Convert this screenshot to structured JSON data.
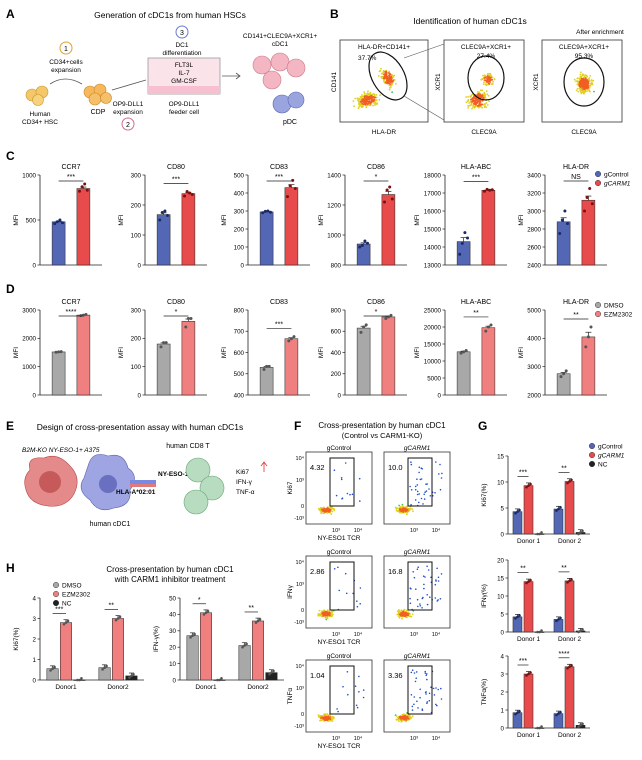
{
  "colors": {
    "blue": "#5467b5",
    "red": "#e84b4b",
    "grey": "#a8a8a8",
    "pink": "#f08080",
    "black": "#222222",
    "dot_blue": "#1a2a66",
    "dot_red": "#7a1111",
    "dot_grey": "#555555"
  },
  "panel_labels": [
    "A",
    "B",
    "C",
    "D",
    "E",
    "F",
    "G",
    "H"
  ],
  "panel_a": {
    "title": "Generation of cDC1s from human HSCs",
    "step1": "CD34+cells",
    "step1b": "expansion",
    "step2": "OP9-DLL1",
    "step2b": "expansion",
    "step3": "DC1",
    "step3b": "differentiation",
    "hsc": "Human",
    "hscb": "CD34+ HSC",
    "cdp": "CDP",
    "cytokine1": "FLT3L",
    "cytokine2": "IL-7",
    "cytokine3": "GM-CSF",
    "feeder": "OP9-DLL1",
    "feederb": "feeder cell",
    "output": "CD141+CLEC9A+XCR1+",
    "outputb": "cDC1",
    "pdc": "pDC",
    "num1": "1",
    "num2": "2",
    "num3": "3"
  },
  "panel_b": {
    "title": "Identification of human cDC1s",
    "after": "After enrichment",
    "gate1": "HLA-DR+CD141+",
    "pct1": "37.7%",
    "gate2": "CLEC9A+XCR1+",
    "pct2": "27.4%",
    "gate3": "CLEC9A+XCR1+",
    "pct3": "95.3%",
    "xlab1": "HLA-DR",
    "ylab1": "CD141",
    "xlab2": "CLEC9A",
    "ylab2": "XCR1",
    "xlab3": "CLEC9A",
    "ylab3": "XCR1"
  },
  "chart_data": [
    {
      "type": "bar",
      "panel": "C",
      "title": "CCR7",
      "ylabel": "MFI",
      "ylim": [
        0,
        1000
      ],
      "ticks": [
        0,
        500,
        1000
      ],
      "series": [
        {
          "name": "gControl",
          "values": [
            480
          ]
        },
        {
          "name": "gCARM1",
          "values": [
            850
          ]
        }
      ],
      "points": [
        [
          460,
          480,
          500,
          470
        ],
        [
          820,
          870,
          900,
          830
        ]
      ],
      "sig": "***"
    },
    {
      "type": "bar",
      "panel": "C",
      "title": "CD80",
      "ylabel": "MFI",
      "ylim": [
        0,
        300
      ],
      "ticks": [
        0,
        100,
        200,
        300
      ],
      "series": [
        {
          "name": "gControl",
          "values": [
            168
          ]
        },
        {
          "name": "gCARM1",
          "values": [
            238
          ]
        }
      ],
      "points": [
        [
          150,
          175,
          180,
          165
        ],
        [
          230,
          245,
          240,
          235
        ]
      ],
      "sig": "***"
    },
    {
      "type": "bar",
      "panel": "C",
      "title": "CD83",
      "ylabel": "MFI",
      "ylim": [
        0,
        500
      ],
      "ticks": [
        0,
        100,
        200,
        300,
        400,
        500
      ],
      "series": [
        {
          "name": "gControl",
          "values": [
            295
          ]
        },
        {
          "name": "gCARM1",
          "values": [
            430
          ]
        }
      ],
      "points": [
        [
          290,
          298,
          300,
          293
        ],
        [
          380,
          440,
          470,
          425
        ]
      ],
      "sig": "***"
    },
    {
      "type": "bar",
      "panel": "C",
      "title": "CD86",
      "ylabel": "MFI",
      "ylim": [
        800,
        1400
      ],
      "ticks": [
        800,
        1000,
        1200,
        1400
      ],
      "series": [
        {
          "name": "gControl",
          "values": [
            940
          ]
        },
        {
          "name": "gCARM1",
          "values": [
            1270
          ]
        }
      ],
      "points": [
        [
          920,
          930,
          960,
          945
        ],
        [
          1220,
          1300,
          1320,
          1240
        ]
      ],
      "sig": "*"
    },
    {
      "type": "bar",
      "panel": "C",
      "title": "HLA-ABC",
      "ylabel": "MFI",
      "ylim": [
        13000,
        18000
      ],
      "ticks": [
        13000,
        14000,
        15000,
        16000,
        17000,
        18000
      ],
      "series": [
        {
          "name": "gControl",
          "values": [
            14300
          ]
        },
        {
          "name": "gCARM1",
          "values": [
            17150
          ]
        }
      ],
      "points": [
        [
          13600,
          14200,
          14800,
          14500
        ],
        [
          17100,
          17200,
          17150,
          17180
        ]
      ],
      "sig": "***"
    },
    {
      "type": "bar",
      "panel": "C",
      "title": "HLA-DR",
      "ylabel": "MFI",
      "ylim": [
        2400,
        3400
      ],
      "ticks": [
        2400,
        2600,
        2800,
        3000,
        3200,
        3400
      ],
      "series": [
        {
          "name": "gControl",
          "values": [
            2880
          ]
        },
        {
          "name": "gCARM1",
          "values": [
            3120
          ]
        }
      ],
      "points": [
        [
          2750,
          2900,
          3000,
          2860
        ],
        [
          3000,
          3150,
          3250,
          3080
        ]
      ],
      "sig": "NS"
    },
    {
      "type": "bar",
      "panel": "D",
      "title": "CCR7",
      "ylabel": "MFI",
      "ylim": [
        0,
        3000
      ],
      "ticks": [
        0,
        1000,
        2000,
        3000
      ],
      "series": [
        {
          "name": "DMSO",
          "values": [
            1520
          ]
        },
        {
          "name": "EZM2302",
          "values": [
            2820
          ]
        }
      ],
      "points": [
        [
          1510,
          1520,
          1530
        ],
        [
          2800,
          2820,
          2840
        ]
      ],
      "sig": "****"
    },
    {
      "type": "bar",
      "panel": "D",
      "title": "CD80",
      "ylabel": "MFI",
      "ylim": [
        0,
        300
      ],
      "ticks": [
        0,
        100,
        200,
        300
      ],
      "series": [
        {
          "name": "DMSO",
          "values": [
            180
          ]
        },
        {
          "name": "EZM2302",
          "values": [
            260
          ]
        }
      ],
      "points": [
        [
          170,
          185,
          185
        ],
        [
          240,
          270,
          270
        ]
      ],
      "sig": "*"
    },
    {
      "type": "bar",
      "panel": "D",
      "title": "CD83",
      "ylabel": "MFI",
      "ylim": [
        400,
        800
      ],
      "ticks": [
        400,
        500,
        600,
        700,
        800
      ],
      "series": [
        {
          "name": "DMSO",
          "values": [
            530
          ]
        },
        {
          "name": "EZM2302",
          "values": [
            665
          ]
        }
      ],
      "points": [
        [
          520,
          535,
          535
        ],
        [
          655,
          665,
          675
        ]
      ],
      "sig": "***"
    },
    {
      "type": "bar",
      "panel": "D",
      "title": "CD86",
      "ylabel": "MFI",
      "ylim": [
        0,
        800
      ],
      "ticks": [
        0,
        200,
        400,
        600,
        800
      ],
      "series": [
        {
          "name": "DMSO",
          "values": [
            630
          ]
        },
        {
          "name": "EZM2302",
          "values": [
            735
          ]
        }
      ],
      "points": [
        [
          590,
          640,
          660
        ],
        [
          720,
          735,
          750
        ]
      ],
      "sig": "*"
    },
    {
      "type": "bar",
      "panel": "D",
      "title": "HLA-ABC",
      "ylabel": "MFI",
      "ylim": [
        0,
        25000
      ],
      "ticks": [
        0,
        5000,
        10000,
        15000,
        20000,
        25000
      ],
      "series": [
        {
          "name": "DMSO",
          "values": [
            12700
          ]
        },
        {
          "name": "EZM2302",
          "values": [
            19800
          ]
        }
      ],
      "points": [
        [
          12300,
          12700,
          13100
        ],
        [
          18800,
          20000,
          20600
        ]
      ],
      "sig": "**"
    },
    {
      "type": "bar",
      "panel": "D",
      "title": "HLA-DR",
      "ylabel": "MFI",
      "ylim": [
        2000,
        5000
      ],
      "ticks": [
        2000,
        3000,
        4000,
        5000
      ],
      "series": [
        {
          "name": "DMSO",
          "values": [
            2750
          ]
        },
        {
          "name": "EZM2302",
          "values": [
            4050
          ]
        }
      ],
      "points": [
        [
          2650,
          2750,
          2850
        ],
        [
          3700,
          4050,
          4400
        ]
      ],
      "sig": "**"
    },
    {
      "type": "bar",
      "panel": "G",
      "ylabel": "Ki67(%)",
      "ylim": [
        0,
        15
      ],
      "ticks": [
        0,
        5,
        10,
        15
      ],
      "categories": [
        "Donor 1",
        "Donor 2"
      ],
      "series": [
        {
          "name": "gControl",
          "values": [
            4.3,
            4.8
          ]
        },
        {
          "name": "gCARM1",
          "values": [
            9.3,
            10.1
          ]
        },
        {
          "name": "NC",
          "values": [
            0,
            0.3
          ]
        }
      ],
      "sigs": [
        "***",
        "**"
      ]
    },
    {
      "type": "bar",
      "panel": "G",
      "ylabel": "IFNγ(%)",
      "ylim": [
        0,
        20
      ],
      "ticks": [
        0,
        5,
        10,
        15,
        20
      ],
      "categories": [
        "Donor 1",
        "Donor 2"
      ],
      "series": [
        {
          "name": "gControl",
          "values": [
            4.2,
            3.5
          ]
        },
        {
          "name": "gCARM1",
          "values": [
            14.0,
            14.2
          ]
        },
        {
          "name": "NC",
          "values": [
            0,
            0.3
          ]
        }
      ],
      "sigs": [
        "**",
        "**"
      ]
    },
    {
      "type": "bar",
      "panel": "G",
      "ylabel": "TNFα(%)",
      "ylim": [
        0,
        4
      ],
      "ticks": [
        0,
        1,
        2,
        3,
        4
      ],
      "categories": [
        "Donor 1",
        "Donor 2"
      ],
      "series": [
        {
          "name": "gControl",
          "values": [
            0.85,
            0.8
          ]
        },
        {
          "name": "gCARM1",
          "values": [
            3.0,
            3.4
          ]
        },
        {
          "name": "NC",
          "values": [
            0,
            0.15
          ]
        }
      ],
      "sigs": [
        "***",
        "****"
      ]
    },
    {
      "type": "bar",
      "panel": "H",
      "ylabel": "Ki67(%)",
      "ylim": [
        0,
        4
      ],
      "ticks": [
        0,
        1,
        2,
        3,
        4
      ],
      "categories": [
        "Donor1",
        "Donor2"
      ],
      "series": [
        {
          "name": "DMSO",
          "values": [
            0.55,
            0.6
          ]
        },
        {
          "name": "EZM2302",
          "values": [
            2.8,
            3.0
          ]
        },
        {
          "name": "NC",
          "values": [
            0,
            0.2
          ]
        }
      ],
      "sigs": [
        "***",
        "**"
      ]
    },
    {
      "type": "bar",
      "panel": "H",
      "ylabel": "IFN-γ(%)",
      "ylim": [
        0,
        50
      ],
      "ticks": [
        0,
        10,
        20,
        30,
        40,
        50
      ],
      "categories": [
        "Donor1",
        "Donor2"
      ],
      "series": [
        {
          "name": "DMSO",
          "values": [
            27,
            21
          ]
        },
        {
          "name": "EZM2302",
          "values": [
            41,
            36
          ]
        },
        {
          "name": "NC",
          "values": [
            0,
            4.5
          ]
        }
      ],
      "sigs": [
        "*",
        "**"
      ]
    }
  ],
  "legends": {
    "c": [
      "gControl",
      "gCARM1"
    ],
    "d": [
      "DMSO",
      "EZM2302"
    ],
    "g": [
      "gControl",
      "gCARM1",
      "NC"
    ],
    "h": [
      "DMSO",
      "EZM2302",
      "NC"
    ]
  },
  "panel_e": {
    "title": "Design of cross-presentation assay with human cDC1s",
    "tumor": "B2M-KO NY-ESO-1+ A375",
    "cdc1": "human cDC1",
    "cd8": "human CD8 T",
    "tcr": "NY-ESO-1 TCR",
    "hla": "HLA-A*02:01",
    "out1": "Ki67",
    "out2": "IFN-γ",
    "out3": "TNF-α"
  },
  "panel_f": {
    "title": "Cross-presentation by human cDC1",
    "subtitle": "(Control vs CARM1-KO)",
    "col1": "gControl",
    "col2": "gCARM1",
    "xlab": "NY-ESO1 TCR",
    "rows": [
      {
        "ylab": "Ki67",
        "v1": "4.32",
        "v2": "10.0"
      },
      {
        "ylab": "IFNγ",
        "v1": "2.86",
        "v2": "16.8"
      },
      {
        "ylab": "TNFα",
        "v1": "1.04",
        "v2": "3.36"
      }
    ],
    "tick_lo": "10³",
    "tick_hi": "10⁴",
    "tick_0": "0",
    "tick_neg": "-10³"
  },
  "panel_h": {
    "title": "Cross-presentation by human cDC1",
    "subtitle": "with CARM1 inhibitor treatment"
  }
}
